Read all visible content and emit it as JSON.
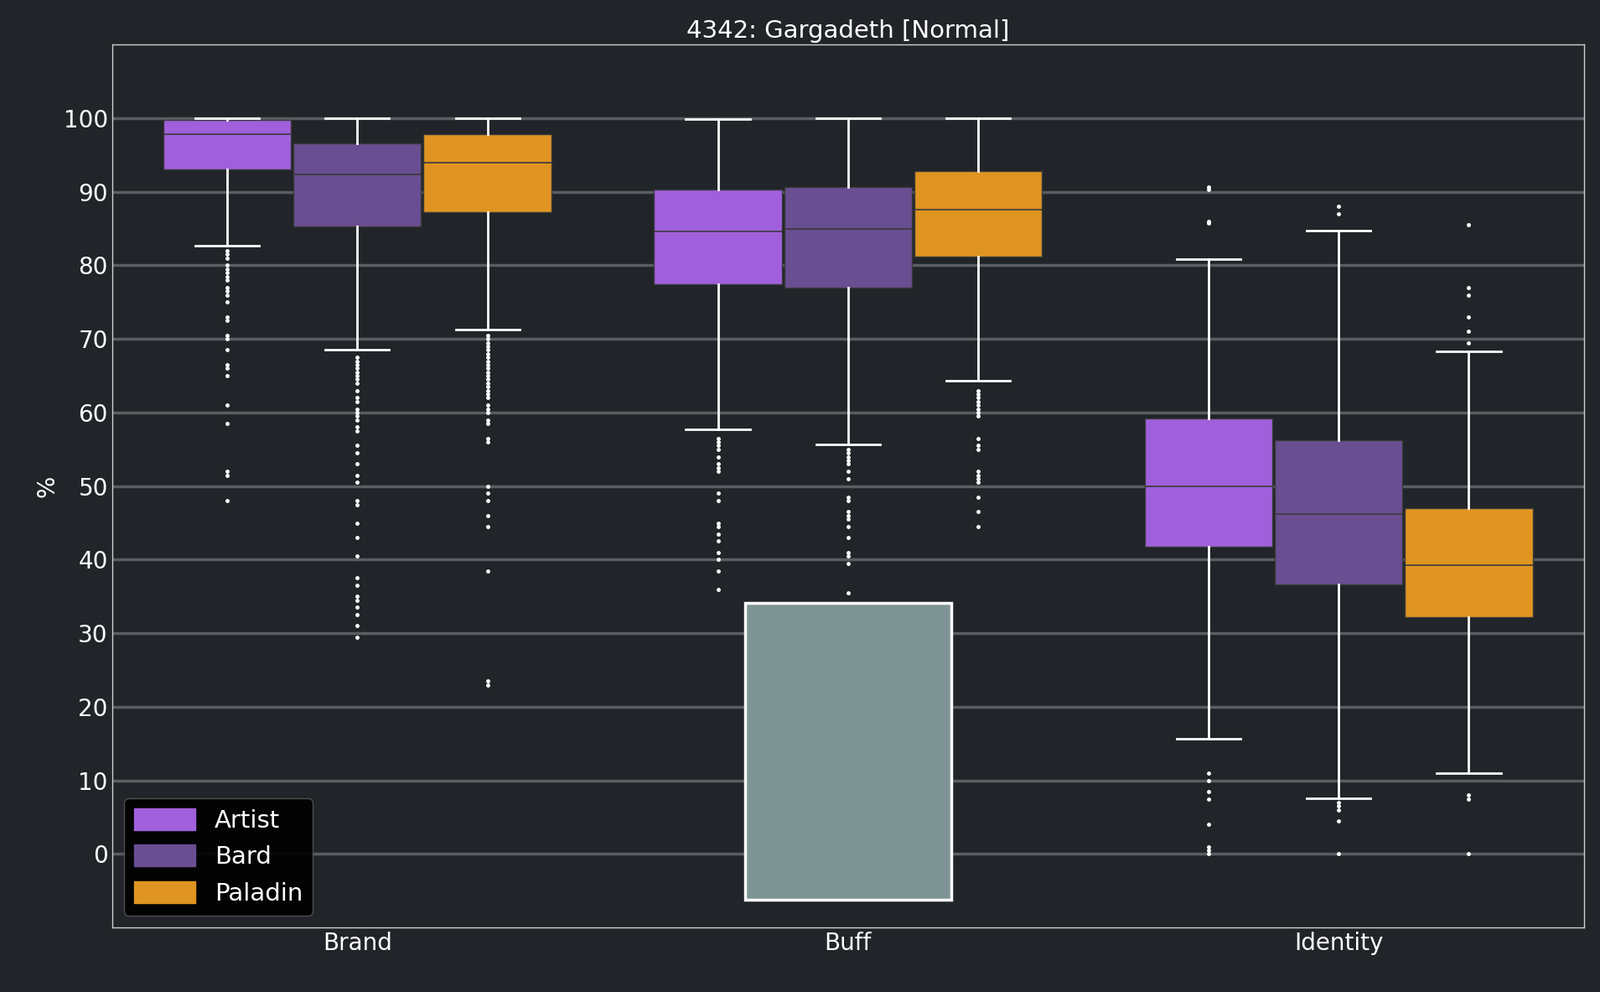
{
  "chart_data": {
    "type": "box",
    "title": "4342: Gargadeth [Normal]",
    "y_label": "%",
    "categories": [
      "Brand",
      "Buff",
      "Identity"
    ],
    "ylim": [
      -10,
      110
    ],
    "yticks": [
      0,
      10,
      20,
      30,
      40,
      50,
      60,
      70,
      80,
      90,
      100
    ],
    "grid": true,
    "legend": "lower left",
    "series": [
      {
        "name": "Artist",
        "color": "#a060dc",
        "values": [
          {
            "whislo": 82.7,
            "q1": 93.0,
            "med": 97.8,
            "q3": 99.8,
            "whishi": 100,
            "fliers": [
              82,
              81.5,
              81,
              80,
              79.5,
              79,
              78.5,
              78,
              77,
              76.5,
              76,
              75,
              73,
              72.5,
              70.5,
              70,
              68.5,
              66.5,
              66,
              65,
              61,
              58.5,
              52,
              51.5,
              48
            ]
          },
          {
            "whislo": 57.7,
            "q1": 77.4,
            "med": 84.6,
            "q3": 90.3,
            "whishi": 99.9,
            "fliers": [
              56.5,
              56,
              55.5,
              55,
              54,
              53,
              52.5,
              52,
              49,
              48,
              45,
              44.5,
              43.5,
              42.5,
              41,
              40,
              38.5,
              36
            ]
          },
          {
            "whislo": 15.6,
            "q1": 41.7,
            "med": 50.0,
            "q3": 59.2,
            "whishi": 80.8,
            "fliers": [
              90.7,
              90.3,
              86,
              85.8,
              11,
              10,
              8.5,
              7.5,
              4,
              1,
              0.5,
              0
            ]
          }
        ]
      },
      {
        "name": "Bard",
        "color": "#6a4e92",
        "values": [
          {
            "whislo": 68.5,
            "q1": 85.3,
            "med": 92.4,
            "q3": 96.6,
            "whishi": 100,
            "fliers": [
              67.5,
              67,
              66.5,
              66,
              65.5,
              65,
              64.5,
              64,
              63,
              62,
              61.5,
              60.5,
              60,
              59.5,
              59,
              58,
              57.5,
              55.5,
              54.5,
              53,
              51.5,
              50.5,
              48,
              47.5,
              45,
              43,
              40.5,
              37.5,
              36.5,
              35,
              34.5,
              33.5,
              32.5,
              31,
              29.5
            ]
          },
          {
            "whislo": 55.7,
            "q1": 77.0,
            "med": 85.0,
            "q3": 90.7,
            "whishi": 100,
            "fliers": [
              55,
              54.5,
              54,
              53.5,
              53,
              52,
              51,
              48.5,
              48,
              46.5,
              46,
              45.5,
              44.5,
              43,
              41,
              40.5,
              39.5,
              35.5
            ]
          },
          {
            "whislo": 7.6,
            "q1": 36.6,
            "med": 46.2,
            "q3": 56.2,
            "whishi": 84.7,
            "fliers": [
              88,
              87,
              7,
              6.5,
              6,
              4.5,
              0
            ]
          }
        ]
      },
      {
        "name": "Paladin",
        "color": "#e09422",
        "values": [
          {
            "whislo": 71.3,
            "q1": 87.2,
            "med": 94.0,
            "q3": 97.8,
            "whishi": 100,
            "fliers": [
              70.5,
              70,
              69.5,
              69,
              68.5,
              68,
              67.5,
              67,
              66.5,
              66,
              65.5,
              65,
              64.5,
              64,
              63.5,
              63,
              62.5,
              62,
              61,
              60.5,
              60,
              59,
              58.5,
              56.5,
              56,
              50,
              49,
              48,
              46,
              44.5,
              38.5,
              23.5,
              23
            ]
          },
          {
            "whislo": 64.3,
            "q1": 81.2,
            "med": 87.6,
            "q3": 92.8,
            "whishi": 100,
            "fliers": [
              63,
              62.5,
              62,
              61.5,
              61,
              60.5,
              60,
              59.5,
              56.5,
              55.5,
              55,
              52,
              51.5,
              51,
              50.5,
              48.5,
              46.5,
              44.5
            ]
          },
          {
            "whislo": 11.0,
            "q1": 32.2,
            "med": 39.2,
            "q3": 47.0,
            "whishi": 68.3,
            "fliers": [
              85.5,
              77,
              76,
              73,
              71,
              69.5,
              8,
              7.5,
              0
            ]
          }
        ]
      }
    ]
  }
}
